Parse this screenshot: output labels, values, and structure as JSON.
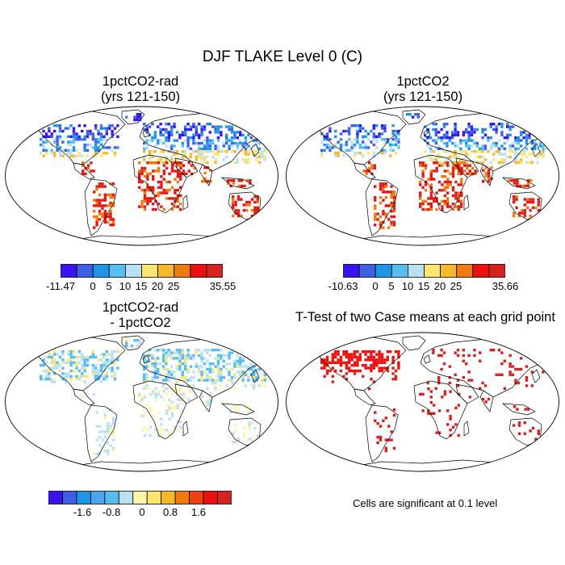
{
  "title": "DJF TLAKE Level 0 (C)",
  "panels": [
    {
      "id": "rad",
      "title_line1": "1pctCO2-rad",
      "title_line2": "(yrs 121-150)",
      "colorbar": {
        "colors": [
          "#3a14f0",
          "#3f5ee6",
          "#1e96e8",
          "#56bdf0",
          "#b9e0f3",
          "#fbe66e",
          "#f7b92a",
          "#f07a10",
          "#ee0f0f",
          "#d6221f"
        ],
        "labels": [
          "-11.47",
          "0",
          "5",
          "10",
          "15",
          "20",
          "25",
          "35.55"
        ]
      }
    },
    {
      "id": "ctrl",
      "title_line1": "1pctCO2",
      "title_line2": "(yrs 121-150)",
      "colorbar": {
        "colors": [
          "#3a14f0",
          "#3f5ee6",
          "#1e96e8",
          "#56bdf0",
          "#b9e0f3",
          "#fbe66e",
          "#f7b92a",
          "#f07a10",
          "#ee0f0f",
          "#d6221f"
        ],
        "labels": [
          "-10.63",
          "0",
          "5",
          "10",
          "15",
          "20",
          "25",
          "35.66"
        ]
      }
    },
    {
      "id": "diff",
      "title_line1": "1pctCO2-rad",
      "title_line2": "- 1pctCO2",
      "colorbar": {
        "colors": [
          "#3a14f0",
          "#3f5ee6",
          "#1e96e8",
          "#4aa6ee",
          "#56bdf0",
          "#b9e0f3",
          "#fff5a8",
          "#fbe66e",
          "#f7b92a",
          "#f07a10",
          "#f04010",
          "#ee0f0f",
          "#d6221f"
        ],
        "labels": [
          "-1.6",
          "-0.8",
          "0",
          "0.8",
          "1.6"
        ]
      }
    },
    {
      "id": "ttest",
      "title_line1": "T-Test of two Case means at each grid point",
      "note": "Cells are significant at 0.1 level"
    }
  ]
}
